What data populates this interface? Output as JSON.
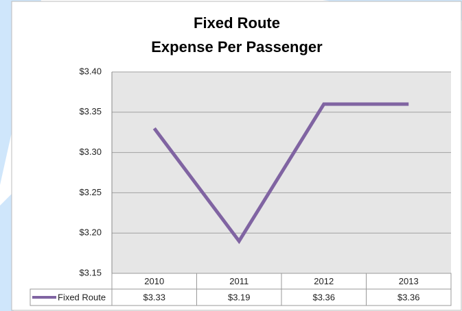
{
  "chart_data": {
    "type": "line",
    "title": [
      "Fixed Route",
      "Expense Per Passenger"
    ],
    "categories": [
      "2010",
      "2011",
      "2012",
      "2013"
    ],
    "series": [
      {
        "name": "Fixed Route",
        "color": "#8064a2",
        "values": [
          3.33,
          3.19,
          3.36,
          3.36
        ],
        "value_labels": [
          "$3.33",
          "$3.19",
          "$3.36",
          "$3.36"
        ]
      }
    ],
    "ylim": [
      3.15,
      3.4
    ],
    "yticks": [
      {
        "value": 3.15,
        "label": "$3.15"
      },
      {
        "value": 3.2,
        "label": "$3.20"
      },
      {
        "value": 3.25,
        "label": "$3.25"
      },
      {
        "value": 3.3,
        "label": "$3.30"
      },
      {
        "value": 3.35,
        "label": "$3.35"
      },
      {
        "value": 3.4,
        "label": "$3.40"
      }
    ],
    "grid": true
  }
}
